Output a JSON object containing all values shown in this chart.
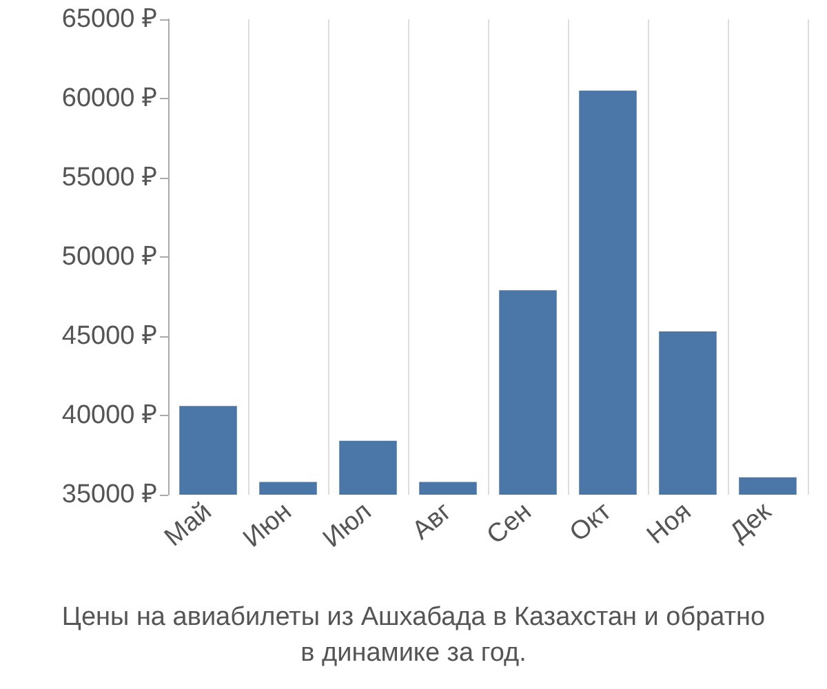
{
  "chart_data": {
    "type": "bar",
    "categories": [
      "Май",
      "Июн",
      "Июл",
      "Авг",
      "Сен",
      "Окт",
      "Ноя",
      "Дек"
    ],
    "values": [
      40600,
      35800,
      38400,
      35800,
      47900,
      60500,
      45300,
      36100
    ],
    "color": "#4a76a8",
    "ylim": [
      35000,
      65000
    ],
    "yticks": [
      {
        "value": 35000,
        "label": "35000 ₽"
      },
      {
        "value": 40000,
        "label": "40000 ₽"
      },
      {
        "value": 45000,
        "label": "45000 ₽"
      },
      {
        "value": 50000,
        "label": "50000 ₽"
      },
      {
        "value": 55000,
        "label": "55000 ₽"
      },
      {
        "value": 60000,
        "label": "60000 ₽"
      },
      {
        "value": 65000,
        "label": "65000 ₽"
      }
    ],
    "grid": "x",
    "annotations": [
      "Цены на авиабилеты из Ашхабада в Казахстан и обратно\nв динамике за год."
    ]
  }
}
